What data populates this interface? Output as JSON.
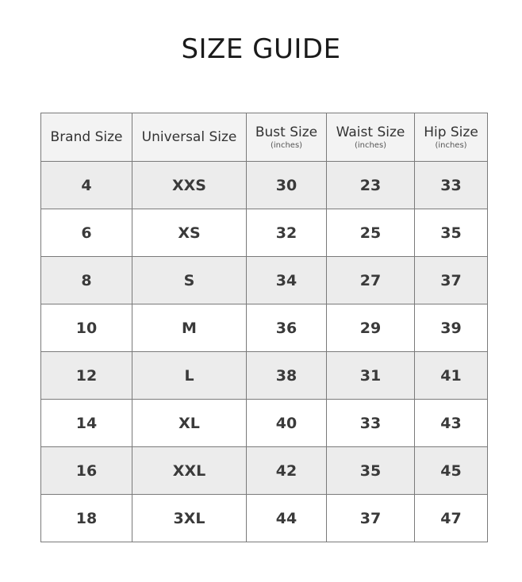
{
  "title": "SIZE GUIDE",
  "headers": [
    {
      "label": "Brand Size",
      "sub": ""
    },
    {
      "label": "Universal Size",
      "sub": ""
    },
    {
      "label": "Bust Size",
      "sub": "(inches)"
    },
    {
      "label": "Waist Size",
      "sub": "(inches)"
    },
    {
      "label": "Hip Size",
      "sub": "(inches)"
    }
  ],
  "rows": [
    [
      "4",
      "XXS",
      "30",
      "23",
      "33"
    ],
    [
      "6",
      "XS",
      "32",
      "25",
      "35"
    ],
    [
      "8",
      "S",
      "34",
      "27",
      "37"
    ],
    [
      "10",
      "M",
      "36",
      "29",
      "39"
    ],
    [
      "12",
      "L",
      "38",
      "31",
      "41"
    ],
    [
      "14",
      "XL",
      "40",
      "33",
      "43"
    ],
    [
      "16",
      "XXL",
      "42",
      "35",
      "45"
    ],
    [
      "18",
      "3XL",
      "44",
      "37",
      "47"
    ]
  ]
}
